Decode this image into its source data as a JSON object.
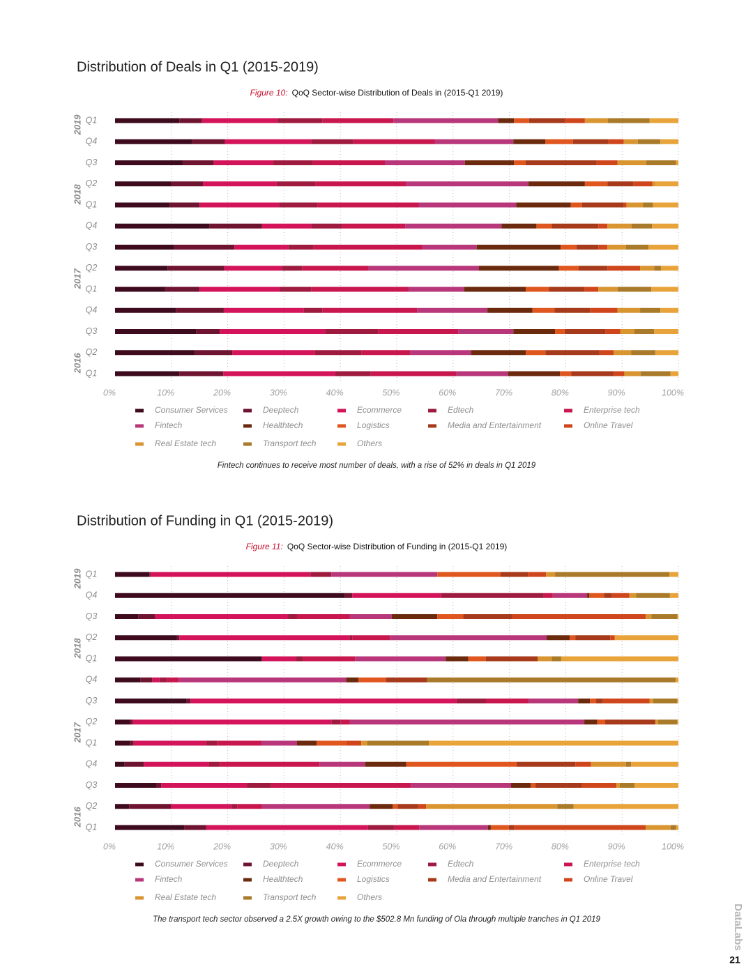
{
  "page": {
    "brand": "DataLabs",
    "number": "21"
  },
  "chart_data": [
    {
      "type": "bar",
      "orientation": "horizontal",
      "stacked": true,
      "title": "Distribution of Deals in Q1 (2015-2019)",
      "figure_label": "Figure 10:",
      "subtitle": "QoQ Sector-wise Distribution of Deals in (2015-Q1 2019)",
      "note": "Fintech continues to receive most number of deals, with a rise of 52% in deals in Q1 2019",
      "categories": [
        "Q1",
        "Q4",
        "Q3",
        "Q2",
        "Q1",
        "Q4",
        "Q3",
        "Q2",
        "Q1",
        "Q4",
        "Q3",
        "Q2",
        "Q1"
      ],
      "groups": [
        {
          "name": "2019",
          "count": 1
        },
        {
          "name": "2018",
          "count": 4
        },
        {
          "name": "2017",
          "count": 4
        },
        {
          "name": "2016",
          "count": 4
        }
      ],
      "xlim": [
        0,
        100
      ],
      "xticks": [
        {
          "value": 0,
          "label": "0%"
        },
        {
          "value": 10,
          "label": "10%"
        },
        {
          "value": 20,
          "label": "20%"
        },
        {
          "value": 30,
          "label": "30%"
        },
        {
          "value": 40,
          "label": "40%"
        },
        {
          "value": 50,
          "label": "50%"
        },
        {
          "value": 60,
          "label": "60%"
        },
        {
          "value": 70,
          "label": "70%"
        },
        {
          "value": 80,
          "label": "80%"
        },
        {
          "value": 90,
          "label": "90%"
        },
        {
          "value": 100,
          "label": "100%"
        }
      ],
      "grid": true,
      "series": [
        {
          "name": "Consumer Services",
          "color": "#3d0a1e",
          "values": [
            11.4,
            13.7,
            12.0,
            9.9,
            9.7,
            16.8,
            10.5,
            9.3,
            8.9,
            10.8,
            14.4,
            14.1,
            11.4
          ]
        },
        {
          "name": "Deeptech",
          "color": "#6e1330",
          "values": [
            4.0,
            5.8,
            5.5,
            5.7,
            5.3,
            9.3,
            10.7,
            10.1,
            6.1,
            8.5,
            4.2,
            6.7,
            7.8
          ]
        },
        {
          "name": "Ecommerce",
          "color": "#d4145a",
          "values": [
            13.4,
            15.3,
            10.6,
            13.1,
            14.1,
            8.7,
            9.6,
            10.2,
            14.2,
            14.2,
            18.7,
            14.7,
            19.9
          ]
        },
        {
          "name": "Edtech",
          "color": "#9e1a3e",
          "values": [
            8.0,
            7.5,
            7.0,
            6.9,
            6.8,
            5.5,
            4.4,
            3.6,
            5.6,
            3.3,
            9.4,
            8.2,
            6.3
          ]
        },
        {
          "name": "Enterprise tech",
          "color": "#c8174e",
          "values": [
            12.6,
            14.5,
            12.8,
            16.1,
            18.0,
            11.2,
            19.4,
            11.8,
            17.3,
            16.8,
            14.2,
            8.7,
            15.2
          ]
        },
        {
          "name": "Fintech",
          "color": "#b8377a",
          "values": [
            18.6,
            13.9,
            14.2,
            21.7,
            17.3,
            17.1,
            9.6,
            19.6,
            9.9,
            12.5,
            9.8,
            10.8,
            9.2
          ]
        },
        {
          "name": "Healthtech",
          "color": "#6b2a0e",
          "values": [
            2.8,
            5.7,
            8.7,
            10.0,
            9.7,
            6.2,
            14.9,
            14.2,
            10.9,
            8.0,
            7.4,
            9.7,
            9.2
          ]
        },
        {
          "name": "Logistics",
          "color": "#e0561f",
          "values": [
            2.7,
            4.9,
            2.1,
            4.0,
            2.0,
            2.7,
            2.8,
            3.5,
            4.1,
            3.9,
            1.7,
            3.5,
            2.0
          ]
        },
        {
          "name": "Media and Entertainment",
          "color": "#a63a1a",
          "values": [
            6.4,
            6.3,
            12.6,
            4.6,
            7.4,
            8.3,
            3.9,
            5.1,
            6.3,
            6.3,
            7.3,
            9.6,
            7.5
          ]
        },
        {
          "name": "Online Travel",
          "color": "#d0461c",
          "values": [
            3.5,
            2.7,
            3.7,
            3.4,
            0.5,
            1.6,
            1.6,
            5.8,
            2.5,
            4.9,
            2.6,
            2.5,
            1.9
          ]
        },
        {
          "name": "Real Estate tech",
          "color": "#d99530",
          "values": [
            4.1,
            2.5,
            5.1,
            0.6,
            2.9,
            4.3,
            3.3,
            2.5,
            3.4,
            4.0,
            2.5,
            3.1,
            2.9
          ]
        },
        {
          "name": "Transport tech",
          "color": "#a97a2a",
          "values": [
            7.4,
            4.0,
            5.3,
            0,
            1.8,
            3.6,
            4.0,
            1.2,
            6.0,
            3.6,
            3.5,
            4.3,
            5.3
          ]
        },
        {
          "name": "Others",
          "color": "#e8a43a",
          "values": [
            5.1,
            3.2,
            0.4,
            4.0,
            4.5,
            4.7,
            5.3,
            3.1,
            4.8,
            3.2,
            4.3,
            4.1,
            1.4
          ]
        }
      ]
    },
    {
      "type": "bar",
      "orientation": "horizontal",
      "stacked": true,
      "title": "Distribution of Funding in Q1 (2015-2019)",
      "figure_label": "Figure 11:",
      "subtitle": "QoQ Sector-wise Distribution of Funding in (2015-Q1 2019)",
      "note": "The transport tech sector observed a 2.5X growth owing to the $502.8 Mn funding of Ola through multiple tranches in Q1 2019",
      "categories": [
        "Q1",
        "Q4",
        "Q3",
        "Q2",
        "Q1",
        "Q4",
        "Q3",
        "Q2",
        "Q1",
        "Q4",
        "Q3",
        "Q2",
        "Q1"
      ],
      "groups": [
        {
          "name": "2019",
          "count": 1
        },
        {
          "name": "2018",
          "count": 4
        },
        {
          "name": "2017",
          "count": 4
        },
        {
          "name": "2016",
          "count": 4
        }
      ],
      "xlim": [
        0,
        100
      ],
      "xticks": [
        {
          "value": 0,
          "label": "0%"
        },
        {
          "value": 10,
          "label": "10%"
        },
        {
          "value": 20,
          "label": "20%"
        },
        {
          "value": 30,
          "label": "30%"
        },
        {
          "value": 40,
          "label": "40%"
        },
        {
          "value": 50,
          "label": "50%"
        },
        {
          "value": 60,
          "label": "60%"
        },
        {
          "value": 70,
          "label": "70%"
        },
        {
          "value": 80,
          "label": "80%"
        },
        {
          "value": 90,
          "label": "90%"
        },
        {
          "value": 100,
          "label": "100%"
        }
      ],
      "grid": true,
      "series": [
        {
          "name": "Consumer Services",
          "color": "#3d0a1e",
          "values": [
            6.1,
            40.8,
            4.1,
            11.0,
            26.0,
            4.5,
            12.7,
            2.6,
            2.7,
            1.7,
            7.3,
            2.5,
            12.3
          ]
        },
        {
          "name": "Deeptech",
          "color": "#6e1330",
          "values": [
            0.2,
            1.3,
            3.0,
            0.4,
            0.1,
            2.1,
            0.7,
            0.5,
            0.6,
            3.4,
            0.9,
            7.4,
            3.9
          ]
        },
        {
          "name": "Ecommerce",
          "color": "#d4145a",
          "values": [
            28.4,
            15.8,
            23.6,
            30.3,
            6.0,
            1.3,
            47.2,
            35.3,
            12.9,
            11.6,
            15.2,
            10.8,
            28.7
          ]
        },
        {
          "name": "Edtech",
          "color": "#9e1a3e",
          "values": [
            3.7,
            18.2,
            1.6,
            0.4,
            1.2,
            1.3,
            5.3,
            1.6,
            1.9,
            1.9,
            4.3,
            1.0,
            4.6
          ]
        },
        {
          "name": "Enterprise tech",
          "color": "#c8174e",
          "values": [
            0,
            1.6,
            9.4,
            6.7,
            9.3,
            2.1,
            7.5,
            1.7,
            7.9,
            17.7,
            24.8,
            4.4,
            4.5
          ]
        },
        {
          "name": "Fintech",
          "color": "#b8377a",
          "values": [
            18.8,
            6.1,
            7.4,
            27.8,
            16.1,
            29.7,
            8.8,
            41.6,
            6.3,
            8.1,
            17.8,
            19.1,
            12.2
          ]
        },
        {
          "name": "Healthtech",
          "color": "#6b2a0e",
          "values": [
            0,
            0.4,
            8.1,
            4.1,
            4.0,
            2.2,
            2.1,
            2.3,
            3.5,
            7.3,
            3.5,
            4.1,
            0.5
          ]
        },
        {
          "name": "Logistics",
          "color": "#e0561f",
          "values": [
            11.2,
            2.6,
            4.6,
            1.0,
            3.1,
            4.9,
            1.1,
            1.4,
            5.3,
            19.6,
            0.8,
            0.9,
            3.2
          ]
        },
        {
          "name": "Media and Entertainment",
          "color": "#a63a1a",
          "values": [
            4.9,
            1.4,
            8.7,
            6.2,
            9.2,
            7.3,
            1.2,
            8.9,
            0,
            10.4,
            8.2,
            3.6,
            0.9
          ]
        },
        {
          "name": "Online Travel",
          "color": "#d0461c",
          "values": [
            3.2,
            3.1,
            23.7,
            0.8,
            0,
            0,
            8.3,
            0,
            2.6,
            2.8,
            6.2,
            1.4,
            23.4
          ]
        },
        {
          "name": "Real Estate tech",
          "color": "#d99530",
          "values": [
            1.6,
            1.2,
            1.0,
            0,
            2.5,
            0,
            0.6,
            0.5,
            1.1,
            6.2,
            0.6,
            23.3,
            4.4
          ]
        },
        {
          "name": "Transport tech",
          "color": "#a97a2a",
          "values": [
            20.3,
            6.0,
            4.6,
            0,
            1.7,
            44.1,
            4.3,
            3.4,
            10.9,
            0.9,
            2.6,
            2.9,
            1.0
          ]
        },
        {
          "name": "Others",
          "color": "#e8a43a",
          "values": [
            1.6,
            1.5,
            0.2,
            11.3,
            20.8,
            0.5,
            0.2,
            0.2,
            44.3,
            8.4,
            7.8,
            18.6,
            0.4
          ]
        }
      ]
    }
  ]
}
